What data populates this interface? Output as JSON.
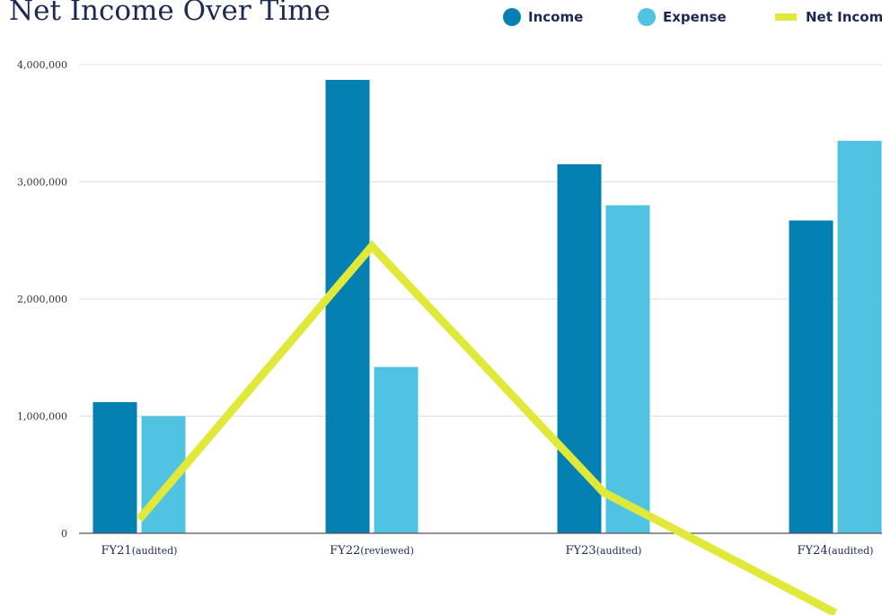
{
  "chart_data": {
    "type": "bar",
    "title": "Net Income Over Time",
    "categories": [
      {
        "main": "FY21",
        "sub": "(audited)"
      },
      {
        "main": "FY22",
        "sub": "(reviewed)"
      },
      {
        "main": "FY23",
        "sub": "(audited)"
      },
      {
        "main": "FY24",
        "sub": "(audited)"
      }
    ],
    "series": [
      {
        "name": "Income",
        "type": "bar",
        "color": "#0580b2",
        "values": [
          1120000,
          3870000,
          3150000,
          2670000
        ]
      },
      {
        "name": "Expense",
        "type": "bar",
        "color": "#4fc3e1",
        "values": [
          1000000,
          1420000,
          2800000,
          3350000
        ]
      },
      {
        "name": "Net Income",
        "type": "line",
        "color": "#e0e83a",
        "values": [
          120000,
          2450000,
          350000,
          -680000
        ]
      }
    ],
    "ylim": [
      0,
      4000000
    ],
    "yticks": [
      0,
      1000000,
      2000000,
      3000000,
      4000000
    ],
    "ytick_labels": [
      "0",
      "1,000,000",
      "2,000,000",
      "3,000,000",
      "4,000,000"
    ],
    "grid": true,
    "legend_position": "top-right",
    "xlabel": "",
    "ylabel": ""
  }
}
